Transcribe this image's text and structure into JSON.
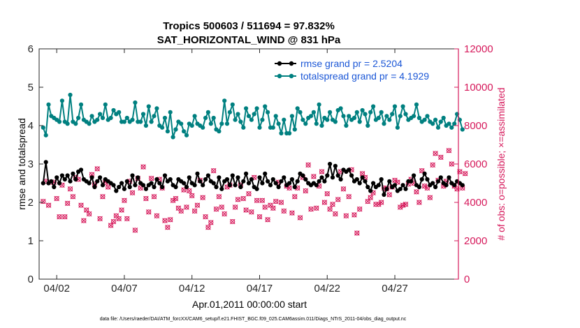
{
  "chart_data": {
    "type": "line",
    "title": "Tropics 500603 / 511694 = 97.832%",
    "subtitle": "SAT_HORIZONTAL_WIND @ 831 hPa",
    "xlabel": "Apr.01,2011 00:00:00 start",
    "ylabel_left": "rmse and totalspread",
    "ylabel_right": "# of obs: o=possible; ×=assimilated",
    "footnote": "data file: /Users/raeder/DAI/ATM_forcXX/CAM6_setup/f.e21.FHIST_BGC.f09_025.CAM6assim.011/Diags_NTrS_2011-04/obs_diag_output.nc",
    "x_range_days": [
      -0.3,
      30.7
    ],
    "x_ticks": [
      {
        "day": 1,
        "label": "04/02"
      },
      {
        "day": 6,
        "label": "04/07"
      },
      {
        "day": 11,
        "label": "04/12"
      },
      {
        "day": 16,
        "label": "04/17"
      },
      {
        "day": 21,
        "label": "04/22"
      },
      {
        "day": 26,
        "label": "04/27"
      }
    ],
    "ylim_left": [
      0,
      6
    ],
    "yticks_left": [
      "0",
      "1",
      "2",
      "3",
      "4",
      "5",
      "6"
    ],
    "ylim_right": [
      0,
      12000
    ],
    "yticks_right": [
      "0",
      "2000",
      "4000",
      "6000",
      "8000",
      "10000",
      "12000"
    ],
    "colors": {
      "rmse": "#000000",
      "spread": "#008080",
      "obs": "#d6195b",
      "axis_right": "#d6195b",
      "legend_text": "#1a56d6"
    },
    "series": [
      {
        "name": "rmse grand pr = 2.5204",
        "key": "rmse",
        "values": [
          2.5,
          3.05,
          2.5,
          2.55,
          2.4,
          2.65,
          2.5,
          2.7,
          2.6,
          2.7,
          2.55,
          2.75,
          2.6,
          2.8,
          2.85,
          2.6,
          2.55,
          2.5,
          2.65,
          2.4,
          2.55,
          2.65,
          2.45,
          2.6,
          2.55,
          2.5,
          2.45,
          2.3,
          2.4,
          2.5,
          2.35,
          2.55,
          2.4,
          2.7,
          2.45,
          2.65,
          2.5,
          2.45,
          2.35,
          2.45,
          2.5,
          2.4,
          2.6,
          2.5,
          2.4,
          2.7,
          2.55,
          2.6,
          2.45,
          2.4,
          2.6,
          2.55,
          2.5,
          2.4,
          2.65,
          2.5,
          2.45,
          2.75,
          2.55,
          2.45,
          2.6,
          2.7,
          2.55,
          2.5,
          2.4,
          2.65,
          2.35,
          2.55,
          2.6,
          2.45,
          2.7,
          2.45,
          2.65,
          2.4,
          2.55,
          2.75,
          2.5,
          2.6,
          2.4,
          2.35,
          2.65,
          2.5,
          2.75,
          2.55,
          2.45,
          2.6,
          2.5,
          2.4,
          2.55,
          2.65,
          2.45,
          2.5,
          2.6,
          2.4,
          2.55,
          2.75,
          2.7,
          2.6,
          2.5,
          2.45,
          2.5,
          2.45,
          2.55,
          2.65,
          2.55,
          2.7,
          3.0,
          2.65,
          2.95,
          2.7,
          2.6,
          2.85,
          2.8,
          2.85,
          2.7,
          2.55,
          2.6,
          2.5,
          2.65,
          2.55,
          2.4,
          2.3,
          2.5,
          2.4,
          2.45,
          2.6,
          2.2,
          2.35,
          2.55,
          2.4,
          2.45,
          2.3,
          2.35,
          2.45,
          2.35,
          2.55,
          2.55,
          2.7,
          2.45,
          2.4,
          2.6,
          2.75,
          2.6,
          2.45,
          2.5,
          2.4,
          2.55,
          2.65,
          2.5,
          2.45,
          2.65,
          2.5,
          2.45,
          2.55,
          2.5,
          2.45
        ]
      },
      {
        "name": "totalspread grand pr = 4.1929",
        "key": "spread",
        "values": [
          3.95,
          3.75,
          4.55,
          4.25,
          4.2,
          4.15,
          4.1,
          4.65,
          4.1,
          4.05,
          4.8,
          4.1,
          4.05,
          4.2,
          4.55,
          4.15,
          4.1,
          4.05,
          4.25,
          4.1,
          4.15,
          4.3,
          4.2,
          4.55,
          4.15,
          4.2,
          4.4,
          4.3,
          4.35,
          4.1,
          4.1,
          4.2,
          4.1,
          4.15,
          4.6,
          4.1,
          4.1,
          4.3,
          4.0,
          4.5,
          4.1,
          4.25,
          4.45,
          4.0,
          3.95,
          4.2,
          3.85,
          4.35,
          3.7,
          3.9,
          4.1,
          4.05,
          3.85,
          3.75,
          4.05,
          4.0,
          4.25,
          4.05,
          4.0,
          3.95,
          4.2,
          4.35,
          4.05,
          4.2,
          3.9,
          3.85,
          4.05,
          4.65,
          4.05,
          4.35,
          4.55,
          4.15,
          4.3,
          4.1,
          3.95,
          4.45,
          4.25,
          4.15,
          4.3,
          4.45,
          3.95,
          4.15,
          4.5,
          4.35,
          3.95,
          3.95,
          4.25,
          4.05,
          3.8,
          4.15,
          3.8,
          3.8,
          4.25,
          3.9,
          4.45,
          4.35,
          4.15,
          4.05,
          4.2,
          4.25,
          4.35,
          4.05,
          4.55,
          4.0,
          4.2,
          4.15,
          4.35,
          4.15,
          4.1,
          4.4,
          4.45,
          4.25,
          4.0,
          4.25,
          4.15,
          4.2,
          4.35,
          4.1,
          4.4,
          4.3,
          4.0,
          4.35,
          4.5,
          4.15,
          4.2,
          4.35,
          4.05,
          4.25,
          4.15,
          4.3,
          4.5,
          3.95,
          4.25,
          4.5,
          4.3,
          4.15,
          4.2,
          4.25,
          4.55,
          4.2,
          4.1,
          4.15,
          4.25,
          4.1,
          4.05,
          4.15,
          3.95,
          4.1,
          4.2,
          4.0,
          4.05,
          3.95,
          4.05,
          4.3,
          4.15,
          3.9
        ]
      }
    ],
    "obs_possible_values": [
      4050,
      5100,
      3850,
      5050,
      5050,
      4200,
      3250,
      4900,
      3250,
      3950,
      4700,
      4300,
      5300,
      5200,
      3850,
      3050,
      3600,
      3400,
      5450,
      4950,
      5750,
      3150,
      4300,
      5050,
      4800,
      2800,
      3000,
      3300,
      3150,
      3600,
      4100,
      3150,
      5100,
      4500,
      2550,
      5250,
      4750,
      5850,
      4200,
      3500,
      5250,
      4300,
      3300,
      5200,
      4750,
      3050,
      2700,
      3100,
      4100,
      4200,
      3700,
      3550,
      4650,
      3750,
      4600,
      4350,
      3550,
      3850,
      5150,
      4250,
      3250,
      2700,
      2950,
      5650,
      3650,
      4300,
      3750,
      3400,
      4800,
      4900,
      3000,
      3750,
      4150,
      4900,
      4200,
      3600,
      4450,
      3500,
      5300,
      4100,
      3250,
      4100,
      3750,
      3100,
      3850,
      3700,
      4050,
      5050,
      4000,
      3550,
      4850,
      4750,
      3450,
      4300,
      4750,
      3200,
      5300,
      4600,
      5950,
      3650,
      5350,
      3700,
      4850,
      5600,
      4000,
      4450,
      3650,
      3900,
      3400,
      4150,
      5600,
      4700,
      3300,
      4300,
      5700,
      3350,
      2400,
      3650,
      5500,
      5300,
      4050,
      4250,
      4500,
      3900,
      3900,
      4000,
      4750,
      4700,
      4400,
      4800,
      5150,
      5050,
      3750,
      3850,
      3900,
      4950,
      5200,
      5000,
      4550,
      4000,
      5650,
      4850,
      4750,
      4250,
      5950,
      6550,
      5150,
      6350,
      4850,
      5100,
      6700,
      6000,
      4850,
      4700,
      5600,
      4750,
      5500
    ]
  }
}
